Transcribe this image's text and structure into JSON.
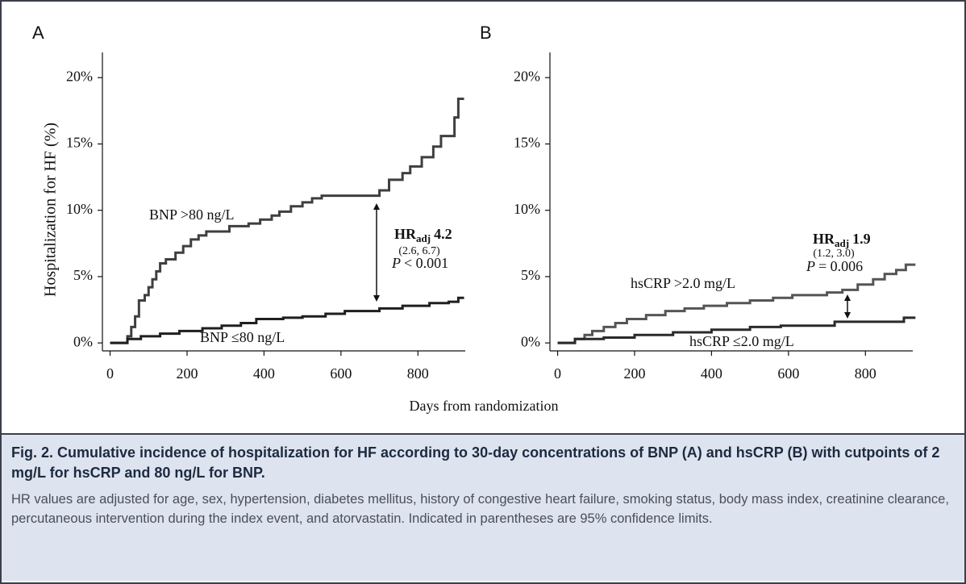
{
  "chart_data": [
    {
      "type": "line",
      "panel": "A",
      "ylabel": "Hospitalization for HF (%)",
      "xlim": [
        -20,
        944
      ],
      "ylim": [
        -0.6,
        21.9
      ],
      "xticks": [
        0,
        200,
        400,
        600,
        800
      ],
      "yticks": [
        {
          "value": 0,
          "label": "0%"
        },
        {
          "value": 5,
          "label": "5%"
        },
        {
          "value": 10,
          "label": "10%"
        },
        {
          "value": 15,
          "label": "15%"
        },
        {
          "value": 20,
          "label": "20%"
        }
      ],
      "series": [
        {
          "name": "BNP >80 ng/L",
          "color": "#3f3f3f",
          "x": [
            0,
            45,
            45,
            55,
            55,
            65,
            65,
            75,
            75,
            90,
            90,
            100,
            100,
            110,
            110,
            120,
            120,
            130,
            130,
            145,
            145,
            170,
            170,
            190,
            190,
            210,
            210,
            230,
            230,
            250,
            250,
            310,
            310,
            360,
            360,
            390,
            390,
            420,
            420,
            440,
            440,
            470,
            470,
            500,
            500,
            525,
            525,
            550,
            550,
            700,
            700,
            725,
            725,
            760,
            760,
            780,
            780,
            810,
            810,
            840,
            840,
            860,
            860,
            895,
            895,
            905,
            905,
            920
          ],
          "values": [
            0,
            0,
            0.5,
            0.5,
            1.2,
            1.2,
            2,
            2,
            3.2,
            3.2,
            3.6,
            3.6,
            4.2,
            4.2,
            4.8,
            4.8,
            5.4,
            5.4,
            6,
            6,
            6.3,
            6.3,
            6.8,
            6.8,
            7.3,
            7.3,
            7.8,
            7.8,
            8.1,
            8.1,
            8.4,
            8.4,
            8.8,
            8.8,
            9,
            9,
            9.3,
            9.3,
            9.6,
            9.6,
            9.9,
            9.9,
            10.3,
            10.3,
            10.6,
            10.6,
            10.9,
            10.9,
            11.1,
            11.1,
            11.5,
            11.5,
            12.3,
            12.3,
            12.8,
            12.8,
            13.3,
            13.3,
            14,
            14,
            14.8,
            14.8,
            15.6,
            15.6,
            17,
            17,
            18.4,
            18.4
          ]
        },
        {
          "name": "BNP ≤80 ng/L",
          "color": "#1f1f1f",
          "x": [
            0,
            45,
            45,
            80,
            80,
            130,
            130,
            180,
            180,
            240,
            240,
            290,
            290,
            340,
            340,
            380,
            380,
            450,
            450,
            500,
            500,
            560,
            560,
            610,
            610,
            700,
            700,
            760,
            760,
            830,
            830,
            880,
            880,
            905,
            905,
            920
          ],
          "values": [
            0,
            0,
            0.3,
            0.3,
            0.5,
            0.5,
            0.7,
            0.7,
            0.9,
            0.9,
            1.1,
            1.1,
            1.3,
            1.3,
            1.5,
            1.5,
            1.8,
            1.8,
            1.9,
            1.9,
            2.0,
            2.0,
            2.2,
            2.2,
            2.4,
            2.4,
            2.6,
            2.6,
            2.8,
            2.8,
            3.0,
            3.0,
            3.1,
            3.1,
            3.4,
            3.4
          ]
        }
      ],
      "annotation": {
        "hr": "HR",
        "hr_sub": "adj",
        "hr_value": "4.2",
        "ci": "(2.6, 6.7)",
        "p": "P",
        "p_text": "< 0.001"
      }
    },
    {
      "type": "line",
      "panel": "B",
      "xlim": [
        -20,
        944
      ],
      "ylim": [
        -0.6,
        21.9
      ],
      "xticks": [
        0,
        200,
        400,
        600,
        800
      ],
      "yticks": [
        {
          "value": 0,
          "label": "0%"
        },
        {
          "value": 5,
          "label": "5%"
        },
        {
          "value": 10,
          "label": "10%"
        },
        {
          "value": 15,
          "label": "15%"
        },
        {
          "value": 20,
          "label": "20%"
        }
      ],
      "series": [
        {
          "name": "hsCRP >2.0 mg/L",
          "color": "#555555",
          "x": [
            0,
            45,
            45,
            70,
            70,
            90,
            90,
            120,
            120,
            150,
            150,
            180,
            180,
            230,
            230,
            280,
            280,
            330,
            330,
            380,
            380,
            440,
            440,
            500,
            500,
            560,
            560,
            610,
            610,
            700,
            700,
            740,
            740,
            780,
            780,
            820,
            820,
            850,
            850,
            880,
            880,
            905,
            905,
            930
          ],
          "values": [
            0,
            0,
            0.3,
            0.3,
            0.6,
            0.6,
            0.9,
            0.9,
            1.2,
            1.2,
            1.5,
            1.5,
            1.8,
            1.8,
            2.1,
            2.1,
            2.4,
            2.4,
            2.6,
            2.6,
            2.8,
            2.8,
            3.0,
            3.0,
            3.2,
            3.2,
            3.4,
            3.4,
            3.6,
            3.6,
            3.8,
            3.8,
            4.0,
            4.0,
            4.4,
            4.4,
            4.8,
            4.8,
            5.2,
            5.2,
            5.5,
            5.5,
            5.9,
            5.9
          ]
        },
        {
          "name": "hsCRP ≤2.0 mg/L",
          "color": "#2a2a2a",
          "x": [
            0,
            45,
            45,
            120,
            120,
            200,
            200,
            300,
            300,
            400,
            400,
            500,
            500,
            580,
            580,
            720,
            720,
            900,
            900,
            930
          ],
          "values": [
            0,
            0,
            0.3,
            0.3,
            0.4,
            0.4,
            0.6,
            0.6,
            0.8,
            0.8,
            1.0,
            1.0,
            1.2,
            1.2,
            1.3,
            1.3,
            1.6,
            1.6,
            1.9,
            1.9
          ]
        }
      ],
      "annotation": {
        "hr": "HR",
        "hr_sub": "adj",
        "hr_value": "1.9",
        "ci": "(1.2, 3.0)",
        "p": "P",
        "p_text": "= 0.006"
      }
    }
  ],
  "xlabel": "Days from randomization",
  "caption": {
    "title": "Fig. 2. Cumulative incidence of hospitalization for HF according to 30-day concentrations of BNP (A) and hsCRP (B) with cutpoints of 2 mg/L for hsCRP and 80 ng/L for BNP.",
    "body": "HR values are adjusted for age, sex, hypertension, diabetes mellitus, history of congestive heart failure, smoking status, body mass index, creatinine clearance, percutaneous intervention during the index event, and atorvastatin. Indicated in parentheses are 95% confidence limits."
  }
}
